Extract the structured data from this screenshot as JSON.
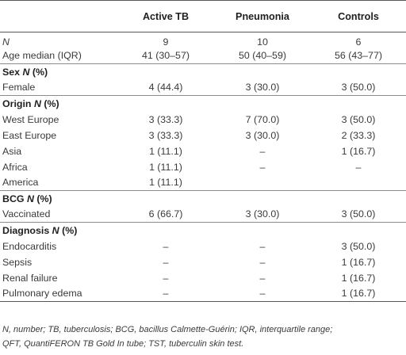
{
  "table": {
    "columns": [
      "",
      "Active TB",
      "Pneumonia",
      "Controls"
    ],
    "rows": [
      {
        "kind": "data",
        "label": "N",
        "label_italic": true,
        "values": [
          "9",
          "10",
          "6"
        ]
      },
      {
        "kind": "data",
        "label": "Age median (IQR)",
        "values": [
          "41 (30–57)",
          "50 (40–59)",
          "56 (43–77)"
        ]
      },
      {
        "kind": "section",
        "label": "Sex",
        "label_suffix_italic": "N",
        "label_tail": " (%)"
      },
      {
        "kind": "data",
        "label": "Female",
        "values": [
          "4 (44.4)",
          "3 (30.0)",
          "3 (50.0)"
        ]
      },
      {
        "kind": "section",
        "label": "Origin",
        "label_suffix_italic": "N",
        "label_tail": " (%)"
      },
      {
        "kind": "data",
        "label": "West Europe",
        "values": [
          "3 (33.3)",
          "7 (70.0)",
          "3 (50.0)"
        ]
      },
      {
        "kind": "data",
        "label": "East Europe",
        "values": [
          "3 (33.3)",
          "3 (30.0)",
          "2 (33.3)"
        ]
      },
      {
        "kind": "data",
        "label": "Asia",
        "values": [
          "1 (11.1)",
          "–",
          "1 (16.7)"
        ]
      },
      {
        "kind": "data",
        "label": "Africa",
        "values": [
          "1 (11.1)",
          "–",
          "–"
        ]
      },
      {
        "kind": "data",
        "label": "America",
        "values": [
          "1 (11.1)",
          "",
          ""
        ]
      },
      {
        "kind": "section",
        "label": "BCG",
        "label_suffix_italic": "N",
        "label_tail": " (%)"
      },
      {
        "kind": "data",
        "label": "Vaccinated",
        "values": [
          "6 (66.7)",
          "3 (30.0)",
          "3 (50.0)"
        ]
      },
      {
        "kind": "section",
        "label": "Diagnosis",
        "label_suffix_italic": "N",
        "label_tail": " (%)"
      },
      {
        "kind": "data",
        "label": "Endocarditis",
        "values": [
          "–",
          "–",
          "3 (50.0)"
        ]
      },
      {
        "kind": "data",
        "label": "Sepsis",
        "values": [
          "–",
          "–",
          "1 (16.7)"
        ]
      },
      {
        "kind": "data",
        "label": "Renal failure",
        "values": [
          "–",
          "–",
          "1 (16.7)"
        ]
      },
      {
        "kind": "data",
        "label": "Pulmonary edema",
        "values": [
          "–",
          "–",
          "1 (16.7)"
        ]
      }
    ]
  },
  "footnote": {
    "line1": "N, number; TB, tuberculosis; BCG, bacillus Calmette-Guérin; IQR, interquartile range;",
    "line2": "QFT, QuantiFERON TB Gold In tube; TST, tuberculin skin test."
  }
}
